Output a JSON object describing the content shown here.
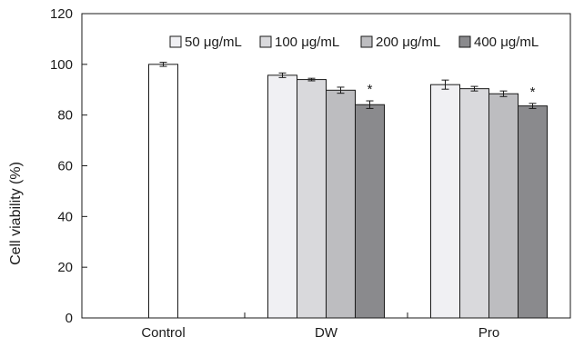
{
  "chart_data": {
    "type": "bar",
    "ylabel": "Cell viability (%)",
    "ylim": [
      0,
      120
    ],
    "yticks": [
      0,
      20,
      40,
      60,
      80,
      100,
      120
    ],
    "grid": false,
    "legend_position": "top-right",
    "categories": [
      "Control",
      "DW",
      "Pro"
    ],
    "series": [
      {
        "name": "Control",
        "color": "#ffffff",
        "values": [
          100,
          null,
          null
        ],
        "errors": [
          0.8,
          null,
          null
        ]
      },
      {
        "name": "50 μg/mL",
        "color": "#f0f0f3",
        "values": [
          null,
          95.7,
          92.0
        ],
        "errors": [
          null,
          0.9,
          1.8
        ]
      },
      {
        "name": "100 μg/mL",
        "color": "#d9d9dc",
        "values": [
          null,
          94.0,
          90.4
        ],
        "errors": [
          null,
          0.5,
          0.9
        ]
      },
      {
        "name": "200 μg/mL",
        "color": "#bdbdc0",
        "values": [
          null,
          89.8,
          88.4
        ],
        "errors": [
          null,
          1.2,
          1.1
        ]
      },
      {
        "name": "400 μg/mL",
        "color": "#8a8a8d",
        "values": [
          null,
          84.1,
          83.6
        ],
        "errors": [
          null,
          1.5,
          1.0
        ]
      }
    ],
    "legend": [
      "50 μg/mL",
      "100 μg/mL",
      "200 μg/mL",
      "400 μg/mL"
    ],
    "annotations": [
      {
        "category": "DW",
        "series": "400 μg/mL",
        "text": "*"
      },
      {
        "category": "Pro",
        "series": "400 μg/mL",
        "text": "*"
      }
    ]
  }
}
